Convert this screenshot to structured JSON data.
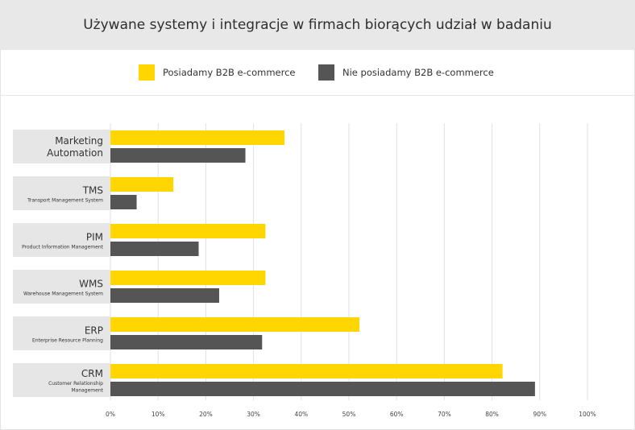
{
  "chart_data": {
    "type": "bar",
    "orientation": "horizontal",
    "title": "Używane systemy i integracje w firmach biorących udział w badaniu",
    "categories": [
      {
        "label": "Marketing Automation",
        "lines": [
          "Marketing",
          "Automation"
        ],
        "sublines": []
      },
      {
        "label": "TMS",
        "lines": [
          "TMS"
        ],
        "sublines": [
          "Transport Management System"
        ]
      },
      {
        "label": "PIM",
        "lines": [
          "PIM"
        ],
        "sublines": [
          "Product Information Management"
        ]
      },
      {
        "label": "WMS",
        "lines": [
          "WMS"
        ],
        "sublines": [
          "Warehouse Management System"
        ]
      },
      {
        "label": "ERP",
        "lines": [
          "ERP"
        ],
        "sublines": [
          "Enterprise Resource Planning"
        ]
      },
      {
        "label": "CRM",
        "lines": [
          "CRM"
        ],
        "sublines": [
          "Customer Relationship",
          "Management"
        ]
      }
    ],
    "series": [
      {
        "name": "Posiadamy B2B e-commerce",
        "color": "#ffd600",
        "values": [
          36.5,
          13.2,
          32.5,
          32.5,
          52.2,
          82.2
        ]
      },
      {
        "name": "Nie posiadamy B2B e-commerce",
        "color": "#555555",
        "values": [
          28.3,
          5.5,
          18.5,
          22.8,
          31.8,
          89.0
        ]
      }
    ],
    "xlim": [
      0,
      100
    ],
    "xticks": [
      "0%",
      "10%",
      "20%",
      "30%",
      "40%",
      "50%",
      "60%",
      "70%",
      "80%",
      "90%",
      "100%"
    ],
    "grid": true,
    "legend_position": "top"
  }
}
